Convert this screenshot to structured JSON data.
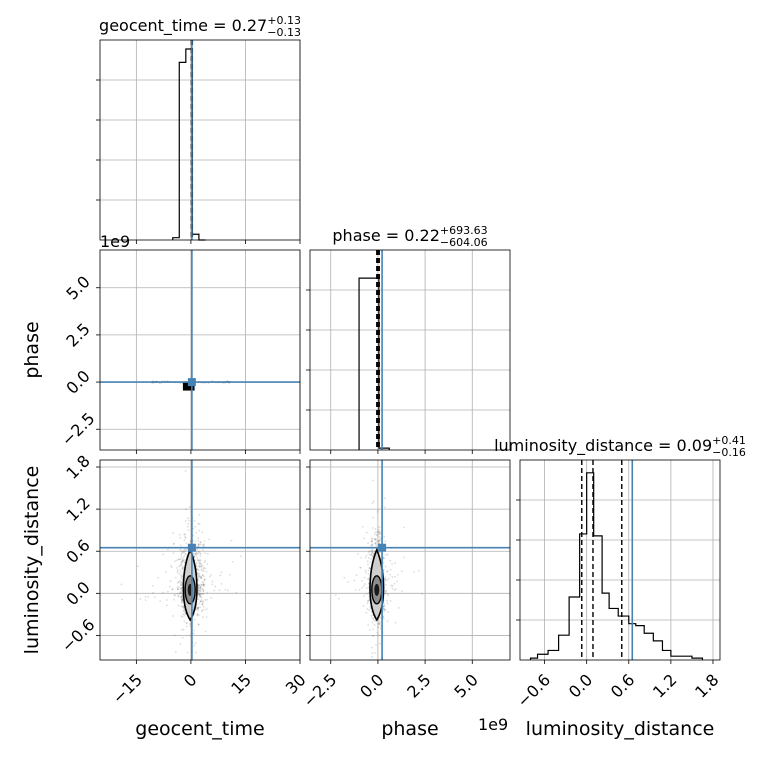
{
  "chart_data": {
    "type": "corner",
    "parameters": [
      "geocent_time",
      "phase",
      "luminosity_distance"
    ],
    "truth_color": "#4682b4",
    "truths": {
      "geocent_time": 0.27,
      "phase": 0.22,
      "luminosity_distance": 0.65
    },
    "panels": {
      "geocent_time": {
        "title_main": "geocent_time = 0.27",
        "title_sup": "+0.13",
        "title_sub": "−0.13",
        "xlim": [
          -25,
          30
        ],
        "ylim": [
          0,
          1.0
        ],
        "hist": {
          "edges": [
            -5,
            -3.2,
            -1.4,
            0.4,
            2.2,
            4.0
          ],
          "heights": [
            0.012,
            0.93,
            1.0,
            0.03,
            0.0
          ]
        },
        "quantiles": [
          0.14,
          0.27,
          0.4
        ]
      },
      "phase": {
        "title_main": "phase = 0.22",
        "title_sup": "+693.63",
        "title_sub": "−604.06",
        "xlim": [
          -3.6,
          7.0
        ],
        "ylim": [
          0,
          1.0
        ],
        "hist": {
          "edges": [
            -1.0,
            -0.45,
            0.05,
            0.6
          ],
          "heights": [
            0.9,
            0.9,
            0.01
          ]
        },
        "quantiles": [
          -0.06,
          0.0,
          0.07
        ]
      },
      "luminosity_distance": {
        "title_main": "luminosity_distance = 0.09",
        "title_sup": "+0.41",
        "title_sub": "−0.16",
        "xlim": [
          -0.95,
          1.9
        ],
        "ylim": [
          0,
          1.0
        ],
        "hist": {
          "edges": [
            -0.8,
            -0.7,
            -0.55,
            -0.4,
            -0.25,
            -0.1,
            0.0,
            0.1,
            0.22,
            0.32,
            0.45,
            0.6,
            0.7,
            0.82,
            0.95,
            1.08,
            1.2,
            1.35,
            1.5,
            1.65
          ],
          "heights": [
            0.01,
            0.03,
            0.05,
            0.13,
            0.33,
            0.66,
            0.98,
            0.65,
            0.35,
            0.27,
            0.23,
            0.19,
            0.18,
            0.14,
            0.1,
            0.05,
            0.02,
            0.02,
            0.01
          ]
        },
        "quantiles": [
          -0.07,
          0.09,
          0.5
        ]
      }
    },
    "axes": {
      "geocent_time": {
        "label": "geocent_time",
        "ticks": [
          -15,
          0,
          15,
          30
        ],
        "tick_labels": [
          "−15",
          "0",
          "15",
          "30"
        ]
      },
      "phase": {
        "label": "phase",
        "offset_text": "1e9",
        "x_ticks": [
          -2.5,
          0.0,
          2.5,
          5.0
        ],
        "x_tick_labels": [
          "−2.5",
          "0.0",
          "2.5",
          "5.0"
        ],
        "y_ticks": [
          -2.5,
          0.0,
          2.5,
          5.0
        ],
        "y_tick_labels": [
          "−2.5",
          "0.0",
          "2.5",
          "5.0"
        ],
        "ylim": [
          -3.6,
          7.0
        ]
      },
      "luminosity_distance": {
        "label": "luminosity_distance",
        "ticks": [
          -0.6,
          0.0,
          0.6,
          1.2,
          1.8
        ],
        "tick_labels": [
          "−0.6",
          "0.0",
          "0.6",
          "1.2",
          "1.8"
        ],
        "ylim": [
          -0.95,
          1.9
        ]
      }
    },
    "grid": true
  }
}
